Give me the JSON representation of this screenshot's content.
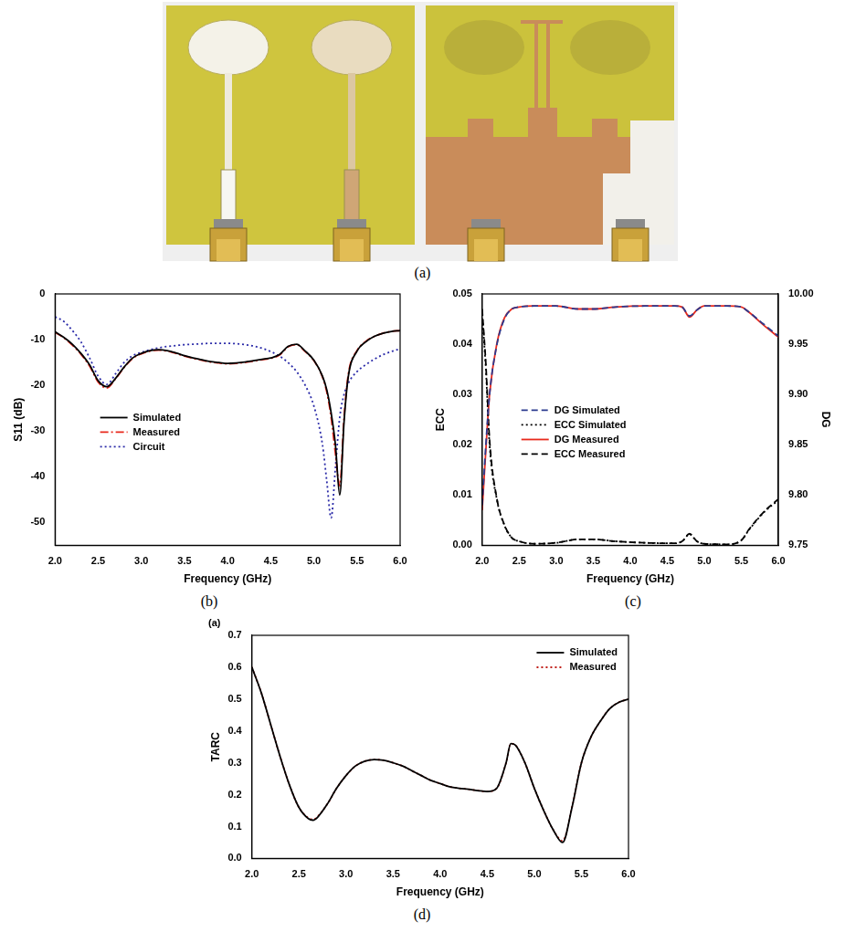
{
  "photo": {
    "caption": "(a)"
  },
  "chart_data": [
    {
      "type": "line",
      "caption": "(b)",
      "x_label": "Frequency (GHz)",
      "y_label": "S11 (dB)",
      "x": [
        2.0,
        2.1,
        2.2,
        2.3,
        2.4,
        2.5,
        2.6,
        2.7,
        2.8,
        2.9,
        3.0,
        3.1,
        3.2,
        3.3,
        3.4,
        3.5,
        3.6,
        3.7,
        3.8,
        3.9,
        4.0,
        4.1,
        4.2,
        4.3,
        4.4,
        4.5,
        4.6,
        4.7,
        4.8,
        4.9,
        5.0,
        5.1,
        5.15,
        5.2,
        5.25,
        5.3,
        5.35,
        5.4,
        5.5,
        5.6,
        5.7,
        5.8,
        5.9,
        6.0
      ],
      "xlim": [
        2,
        6
      ],
      "xticks": [
        {
          "value": 2,
          "label": "2.0"
        },
        2.5,
        {
          "value": 3,
          "label": "3.0"
        },
        3.5,
        {
          "value": 4,
          "label": "4.0"
        },
        4.5,
        {
          "value": 5,
          "label": "5.0"
        },
        5.5,
        {
          "value": 6,
          "label": "6.0"
        }
      ],
      "ylim": [
        -55,
        0
      ],
      "yticks": [
        -50,
        -40,
        -30,
        -20,
        -10,
        0
      ],
      "grid": false,
      "legend": "center left",
      "series": [
        {
          "name": "Simulated",
          "color": "#000000",
          "line_style": "solid",
          "values": [
            -8.3,
            -9.5,
            -11,
            -13,
            -15.5,
            -19,
            -20.3,
            -18.5,
            -16,
            -14,
            -13,
            -12.4,
            -12.2,
            -12.4,
            -12.9,
            -13.5,
            -14,
            -14.4,
            -14.8,
            -15,
            -15.2,
            -15.1,
            -14.9,
            -14.6,
            -14.3,
            -14,
            -13.3,
            -11.5,
            -11,
            -12.5,
            -14.5,
            -18,
            -21,
            -26,
            -33,
            -44,
            -28,
            -18,
            -12.5,
            -10.5,
            -9.3,
            -8.6,
            -8.2,
            -8
          ]
        },
        {
          "name": "Measured",
          "color": "#e8291c",
          "line_style": "dashdot",
          "values": [
            -8.4,
            -9.6,
            -11.2,
            -13.2,
            -15.8,
            -19.3,
            -20.6,
            -18.6,
            -16.1,
            -14.1,
            -13.1,
            -12.5,
            -12.3,
            -12.5,
            -13,
            -13.6,
            -14.1,
            -14.5,
            -14.9,
            -15.1,
            -15.3,
            -15.2,
            -15,
            -14.7,
            -14.4,
            -14.1,
            -13.4,
            -11.6,
            -11.1,
            -12.6,
            -14.6,
            -18.2,
            -21.5,
            -27,
            -35,
            -42,
            -27,
            -17.5,
            -12.4,
            -10.4,
            -9.3,
            -8.6,
            -8.2,
            -8
          ]
        },
        {
          "name": "Circuit",
          "color": "#2a2aa8",
          "line_style": "dotted",
          "values": [
            -5,
            -6,
            -8,
            -10.5,
            -14,
            -18,
            -19.8,
            -17.5,
            -15,
            -13.5,
            -12.8,
            -12.2,
            -11.8,
            -11.5,
            -11.3,
            -11.1,
            -11,
            -10.9,
            -10.8,
            -10.8,
            -10.8,
            -10.9,
            -11.1,
            -11.4,
            -11.9,
            -12.6,
            -13.6,
            -15,
            -17,
            -20,
            -24.5,
            -33,
            -41,
            -49,
            -38,
            -27,
            -22,
            -19.5,
            -17,
            -15.5,
            -14.3,
            -13.3,
            -12.6,
            -12
          ]
        }
      ]
    },
    {
      "type": "line",
      "caption": "(c)",
      "x_label": "Frequency (GHz)",
      "y_label": "ECC",
      "y2_label": "DG",
      "x": [
        2.0,
        2.05,
        2.1,
        2.2,
        2.3,
        2.4,
        2.5,
        2.7,
        3.0,
        3.3,
        3.5,
        3.8,
        4.2,
        4.6,
        4.7,
        4.8,
        4.9,
        5.0,
        5.3,
        5.5,
        5.6,
        5.8,
        6.0
      ],
      "xlim": [
        2,
        6
      ],
      "xticks": [
        {
          "value": 2,
          "label": "2.0"
        },
        2.5,
        {
          "value": 3,
          "label": "3.0"
        },
        3.5,
        {
          "value": 4,
          "label": "4.0"
        },
        4.5,
        {
          "value": 5,
          "label": "5.0"
        },
        5.5,
        {
          "value": 6,
          "label": "6.0"
        }
      ],
      "ylim": [
        0,
        0.05
      ],
      "yticks": [
        {
          "value": 0,
          "label": "0.00"
        },
        0.01,
        0.02,
        0.03,
        0.04,
        0.05
      ],
      "y2lim": [
        9.75,
        10
      ],
      "y2ticks": [
        9.75,
        {
          "value": 9.8,
          "label": "9.80"
        },
        9.85,
        {
          "value": 9.9,
          "label": "9.90"
        },
        9.95,
        {
          "value": 10,
          "label": "10.00"
        }
      ],
      "grid": false,
      "legend": "center left",
      "series": [
        {
          "name": "DG Simulated",
          "color": "#2b3a8f",
          "line_style": "dashed",
          "axis": "y2",
          "values": [
            9.79,
            9.85,
            9.9,
            9.95,
            9.975,
            9.985,
            9.987,
            9.988,
            9.988,
            9.985,
            9.985,
            9.987,
            9.988,
            9.988,
            9.987,
            9.978,
            9.984,
            9.988,
            9.988,
            9.987,
            9.982,
            9.97,
            9.958
          ]
        },
        {
          "name": "ECC Simulated",
          "color": "#000000",
          "line_style": "dotted",
          "values": [
            0.046,
            0.035,
            0.02,
            0.009,
            0.004,
            0.0015,
            0.0008,
            0.0003,
            0.0005,
            0.0012,
            0.0012,
            0.0008,
            0.0005,
            0.0004,
            0.0008,
            0.0022,
            0.0008,
            0.0003,
            0.0002,
            0.001,
            0.003,
            0.0065,
            0.009
          ]
        },
        {
          "name": "DG Measured",
          "color": "#e8291c",
          "line_style": "solid",
          "axis": "y2",
          "values": [
            9.785,
            9.845,
            9.9,
            9.951,
            9.976,
            9.985,
            9.987,
            9.988,
            9.988,
            9.985,
            9.985,
            9.987,
            9.988,
            9.988,
            9.987,
            9.977,
            9.984,
            9.988,
            9.988,
            9.987,
            9.982,
            9.969,
            9.957
          ]
        },
        {
          "name": "ECC Measured",
          "color": "#000000",
          "line_style": "dashed",
          "values": [
            0.047,
            0.036,
            0.021,
            0.0092,
            0.0041,
            0.0015,
            0.0008,
            0.0003,
            0.0005,
            0.0012,
            0.0012,
            0.0008,
            0.0005,
            0.0004,
            0.0008,
            0.0023,
            0.0008,
            0.0003,
            0.0002,
            0.001,
            0.0031,
            0.0066,
            0.0092
          ]
        }
      ]
    },
    {
      "type": "line",
      "caption": "(d)",
      "annotation": "(a)",
      "x_label": "Frequency (GHz)",
      "y_label": "TARC",
      "x": [
        2.0,
        2.1,
        2.2,
        2.3,
        2.4,
        2.5,
        2.6,
        2.65,
        2.7,
        2.8,
        2.9,
        3.0,
        3.1,
        3.2,
        3.3,
        3.4,
        3.5,
        3.6,
        3.7,
        3.8,
        3.9,
        4.0,
        4.1,
        4.2,
        4.3,
        4.4,
        4.5,
        4.6,
        4.7,
        4.75,
        4.8,
        4.9,
        5.0,
        5.1,
        5.2,
        5.3,
        5.4,
        5.5,
        5.6,
        5.7,
        5.8,
        5.9,
        6.0
      ],
      "xlim": [
        2,
        6
      ],
      "xticks": [
        {
          "value": 2,
          "label": "2.0"
        },
        2.5,
        {
          "value": 3,
          "label": "3.0"
        },
        3.5,
        {
          "value": 4,
          "label": "4.0"
        },
        4.5,
        {
          "value": 5,
          "label": "5.0"
        },
        5.5,
        {
          "value": 6,
          "label": "6.0"
        }
      ],
      "ylim": [
        0,
        0.7
      ],
      "yticks": [
        {
          "value": 0,
          "label": "0.0"
        },
        0.1,
        0.2,
        0.3,
        0.4,
        0.5,
        0.6,
        0.7
      ],
      "grid": false,
      "legend": "upper right",
      "series": [
        {
          "name": "Simulated",
          "color": "#000000",
          "line_style": "solid",
          "values": [
            0.6,
            0.52,
            0.42,
            0.32,
            0.23,
            0.16,
            0.125,
            0.12,
            0.13,
            0.17,
            0.22,
            0.26,
            0.29,
            0.305,
            0.31,
            0.308,
            0.3,
            0.29,
            0.275,
            0.26,
            0.245,
            0.235,
            0.225,
            0.22,
            0.217,
            0.213,
            0.21,
            0.22,
            0.3,
            0.36,
            0.355,
            0.3,
            0.22,
            0.15,
            0.09,
            0.05,
            0.16,
            0.3,
            0.38,
            0.43,
            0.47,
            0.49,
            0.5
          ]
        },
        {
          "name": "Measured",
          "color": "#c0201a",
          "line_style": "dotted",
          "values": [
            0.6,
            0.52,
            0.42,
            0.32,
            0.23,
            0.16,
            0.127,
            0.122,
            0.132,
            0.17,
            0.22,
            0.26,
            0.29,
            0.305,
            0.31,
            0.308,
            0.3,
            0.29,
            0.275,
            0.26,
            0.245,
            0.235,
            0.225,
            0.22,
            0.217,
            0.213,
            0.21,
            0.22,
            0.3,
            0.36,
            0.355,
            0.3,
            0.22,
            0.15,
            0.09,
            0.055,
            0.16,
            0.3,
            0.38,
            0.43,
            0.47,
            0.49,
            0.5
          ]
        }
      ]
    }
  ]
}
